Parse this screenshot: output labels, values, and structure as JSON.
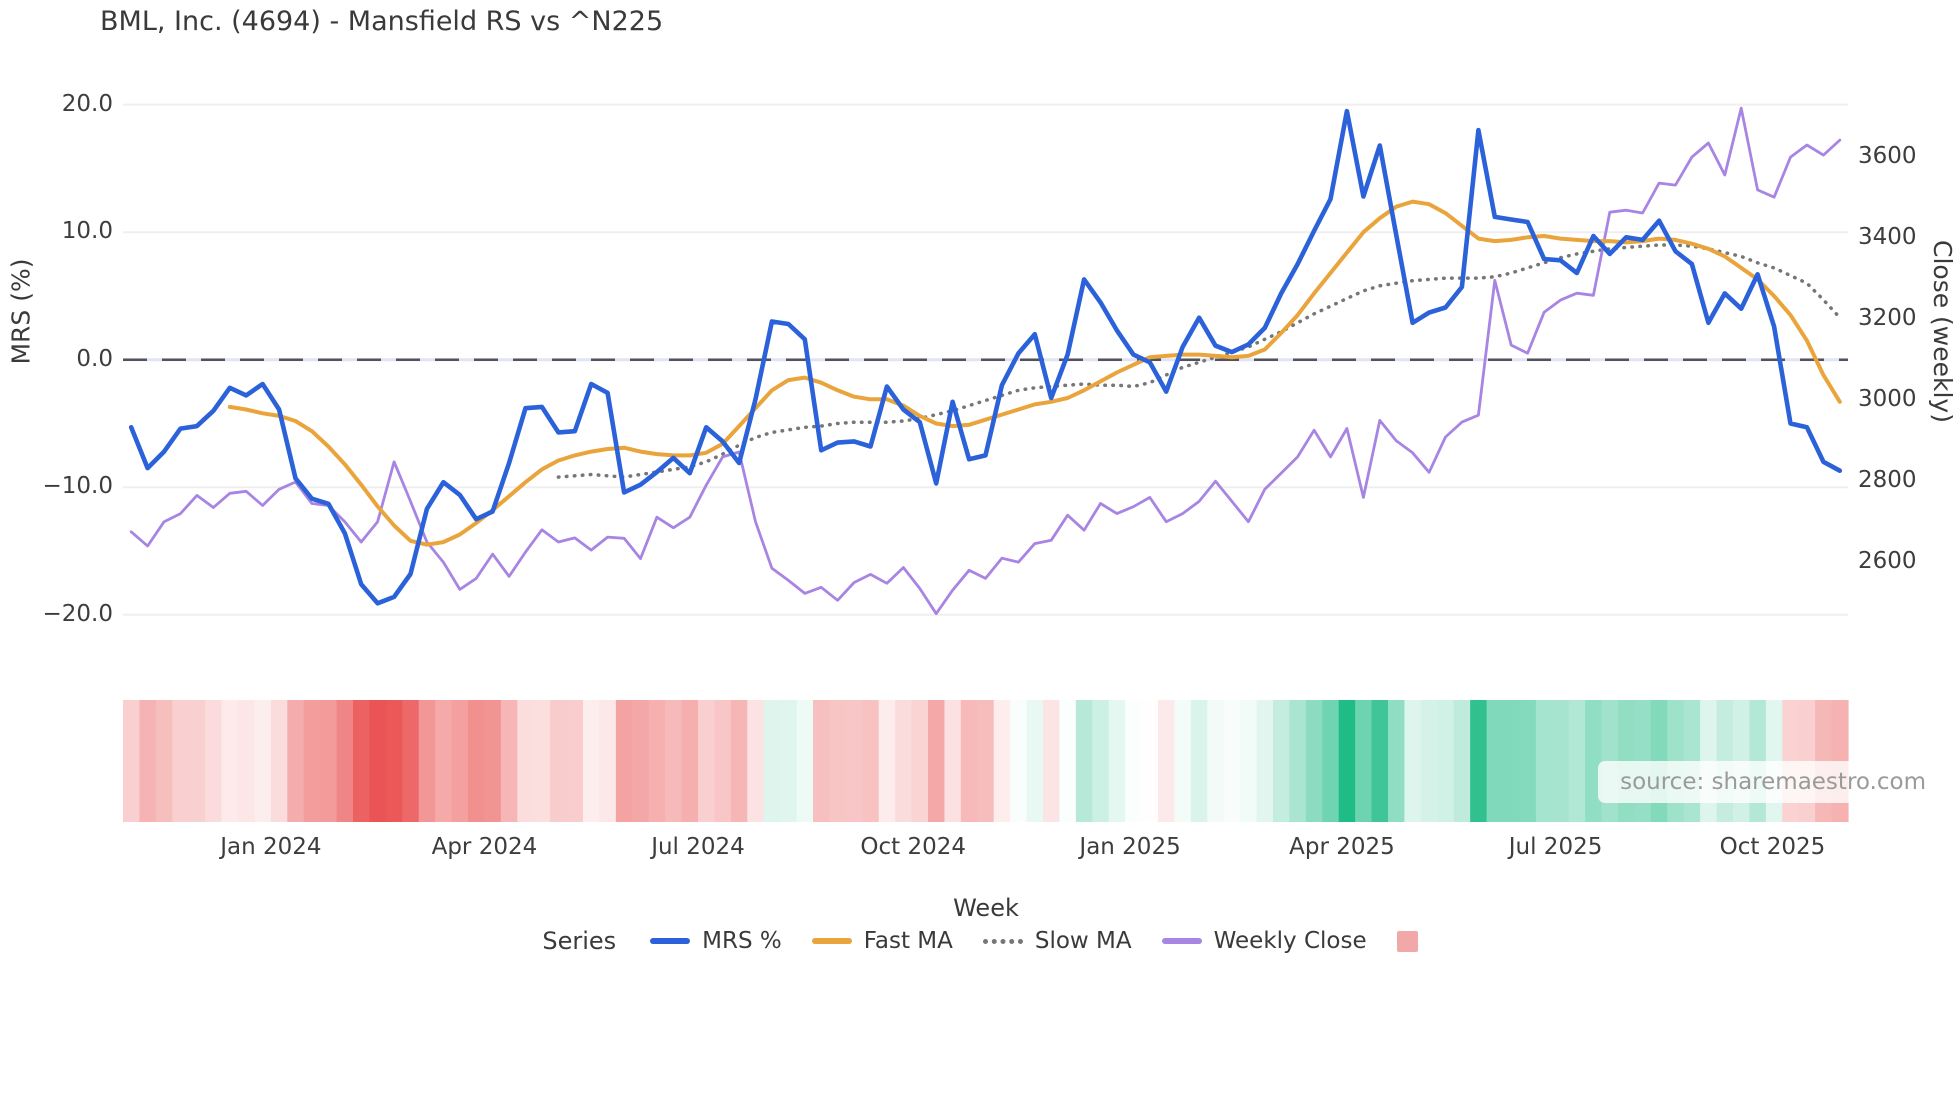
{
  "title": "BML, Inc. (4694) - Mansfield RS vs ^N225",
  "source_watermark": "source: sharemaestro.com",
  "legend": {
    "title": "Series",
    "heatmap_swatch_color": "#f2a8a8"
  },
  "chart_data": {
    "type": "line",
    "title": "BML, Inc. (4694) - Mansfield RS vs ^N225",
    "x_axis": {
      "label": "Week",
      "weeks": 105,
      "tick_labels": [
        "Jan 2024",
        "Apr 2024",
        "Jul 2024",
        "Oct 2024",
        "Jan 2025",
        "Apr 2025",
        "Jul 2025",
        "Oct 2025"
      ],
      "tick_week_positions": [
        8.5,
        21.5,
        34.5,
        47.6,
        60.8,
        73.7,
        86.7,
        99.9
      ]
    },
    "y_left": {
      "label": "MRS (%)",
      "tick_labels": [
        "20.0",
        "10.0",
        "0.0",
        "−10.0",
        "−20.0"
      ],
      "tick_values": [
        20,
        10,
        0,
        -10,
        -20
      ],
      "range": [
        -20.8,
        21.7
      ],
      "zero_line": 0.0
    },
    "y_right": {
      "label": "Close (weekly)",
      "tick_labels": [
        "3600",
        "3400",
        "3200",
        "3000",
        "2800",
        "2600"
      ],
      "tick_values": [
        3600,
        3400,
        3200,
        3000,
        2800,
        2600
      ],
      "range": [
        2445,
        3783
      ]
    },
    "series": [
      {
        "name": "MRS %",
        "axis": "left",
        "color": "#2b62d9",
        "width": 4.6,
        "style": "solid",
        "values": [
          -5.3,
          -8.5,
          -7.2,
          -5.4,
          -5.2,
          -4.0,
          -2.2,
          -2.8,
          -1.9,
          -3.9,
          -9.3,
          -10.9,
          -11.3,
          -13.6,
          -17.6,
          -19.1,
          -18.6,
          -16.8,
          -11.7,
          -9.6,
          -10.6,
          -12.5,
          -11.9,
          -8.1,
          -3.8,
          -3.7,
          -5.7,
          -5.6,
          -1.9,
          -2.6,
          -10.4,
          -9.8,
          -8.8,
          -7.7,
          -8.9,
          -5.3,
          -6.4,
          -8.1,
          -3.1,
          3.0,
          2.8,
          1.6,
          -7.1,
          -6.5,
          -6.4,
          -6.8,
          -2.1,
          -3.9,
          -4.9,
          -9.7,
          -3.3,
          -7.8,
          -7.5,
          -2.0,
          0.5,
          2.0,
          -3.0,
          0.4,
          6.3,
          4.5,
          2.3,
          0.4,
          -0.2,
          -2.5,
          1.0,
          3.3,
          1.1,
          0.6,
          1.2,
          2.5,
          5.2,
          7.5,
          10.1,
          12.6,
          19.5,
          12.8,
          16.8,
          9.8,
          2.9,
          3.7,
          4.1,
          5.7,
          18.0,
          11.2,
          11.0,
          10.8,
          7.9,
          7.8,
          6.8,
          9.7,
          8.3,
          9.6,
          9.4,
          10.9,
          8.5,
          7.5,
          2.9,
          5.2,
          4.0,
          6.7,
          2.6,
          -5.0,
          -5.3,
          -8.0,
          -8.7
        ]
      },
      {
        "name": "Fast MA",
        "axis": "left",
        "color": "#e9a43c",
        "width": 4.0,
        "style": "solid",
        "values": [
          null,
          null,
          null,
          null,
          null,
          null,
          -3.7,
          -3.9,
          -4.2,
          -4.4,
          -4.8,
          -5.6,
          -6.8,
          -8.2,
          -9.8,
          -11.5,
          -13.0,
          -14.2,
          -14.5,
          -14.3,
          -13.7,
          -12.8,
          -11.8,
          -10.7,
          -9.6,
          -8.6,
          -7.9,
          -7.5,
          -7.2,
          -7.0,
          -6.9,
          -7.2,
          -7.4,
          -7.5,
          -7.5,
          -7.3,
          -6.6,
          -5.2,
          -3.8,
          -2.4,
          -1.6,
          -1.4,
          -1.8,
          -2.4,
          -2.9,
          -3.1,
          -3.1,
          -3.6,
          -4.4,
          -5.0,
          -5.2,
          -5.1,
          -4.7,
          -4.3,
          -3.9,
          -3.5,
          -3.3,
          -3.0,
          -2.4,
          -1.7,
          -1.0,
          -0.4,
          0.2,
          0.3,
          0.4,
          0.4,
          0.3,
          0.2,
          0.3,
          0.8,
          2.1,
          3.5,
          5.2,
          6.8,
          8.4,
          10.0,
          11.1,
          12.0,
          12.4,
          12.2,
          11.5,
          10.5,
          9.5,
          9.3,
          9.4,
          9.6,
          9.7,
          9.5,
          9.4,
          9.3,
          9.3,
          9.2,
          9.3,
          9.5,
          9.4,
          9.1,
          8.7,
          8.1,
          7.2,
          6.3,
          5.0,
          3.5,
          1.5,
          -1.2,
          -3.3
        ]
      },
      {
        "name": "Slow MA",
        "axis": "left",
        "color": "#767676",
        "width": 3.5,
        "style": "dotted",
        "values": [
          null,
          null,
          null,
          null,
          null,
          null,
          null,
          null,
          null,
          null,
          null,
          null,
          null,
          null,
          null,
          null,
          null,
          null,
          null,
          null,
          null,
          null,
          null,
          null,
          null,
          null,
          -9.2,
          -9.1,
          -9.0,
          -9.1,
          -9.2,
          -9.0,
          -8.8,
          -8.6,
          -8.4,
          -8.0,
          -7.4,
          -6.7,
          -6.1,
          -5.7,
          -5.5,
          -5.3,
          -5.2,
          -5.0,
          -4.9,
          -4.9,
          -4.9,
          -4.8,
          -4.6,
          -4.3,
          -4.0,
          -3.6,
          -3.2,
          -2.8,
          -2.4,
          -2.2,
          -2.1,
          -2.0,
          -1.9,
          -2.0,
          -2.0,
          -2.1,
          -1.8,
          -1.2,
          -0.6,
          -0.2,
          0.2,
          0.6,
          1.0,
          1.6,
          2.2,
          2.9,
          3.6,
          4.2,
          4.8,
          5.4,
          5.8,
          6.0,
          6.2,
          6.3,
          6.4,
          6.4,
          6.4,
          6.5,
          6.8,
          7.2,
          7.6,
          8.0,
          8.3,
          8.5,
          8.7,
          8.8,
          8.9,
          9.0,
          9.0,
          8.9,
          8.7,
          8.4,
          8.1,
          7.6,
          7.2,
          6.6,
          6.0,
          4.7,
          3.3
        ]
      },
      {
        "name": "Weekly Close",
        "axis": "right",
        "color": "#a884e3",
        "width": 2.8,
        "style": "solid",
        "values": [
          2675,
          2640,
          2700,
          2720,
          2765,
          2735,
          2770,
          2775,
          2740,
          2780,
          2798,
          2745,
          2740,
          2700,
          2650,
          2700,
          2848,
          2750,
          2650,
          2600,
          2533,
          2560,
          2620,
          2565,
          2625,
          2680,
          2650,
          2660,
          2630,
          2662,
          2659,
          2609,
          2711,
          2685,
          2711,
          2790,
          2860,
          2872,
          2700,
          2585,
          2555,
          2523,
          2538,
          2506,
          2550,
          2570,
          2548,
          2587,
          2535,
          2473,
          2531,
          2580,
          2560,
          2610,
          2600,
          2646,
          2654,
          2716,
          2679,
          2745,
          2720,
          2737,
          2760,
          2700,
          2720,
          2750,
          2800,
          2750,
          2700,
          2780,
          2820,
          2860,
          2926,
          2860,
          2930,
          2760,
          2950,
          2900,
          2870,
          2822,
          2909,
          2946,
          2963,
          3296,
          3136,
          3116,
          3217,
          3247,
          3264,
          3259,
          3464,
          3469,
          3462,
          3536,
          3531,
          3600,
          3635,
          3556,
          3721,
          3519,
          3501,
          3600,
          3630,
          3605,
          3642
        ]
      }
    ],
    "heatmap": {
      "values_from": "MRS %",
      "positive_color": "#20bc86",
      "negative_color": "#ea5050",
      "max_abs": 19.5
    },
    "grid": true,
    "legend_position": "bottom"
  }
}
